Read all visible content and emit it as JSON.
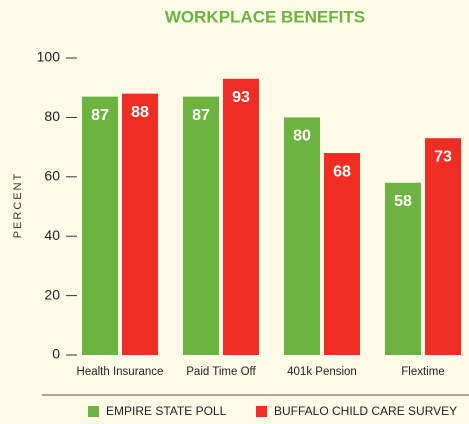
{
  "chart_data": {
    "type": "bar",
    "title": "WORKPLACE BENEFITS",
    "y_label": "PERCENT",
    "categories": [
      "Health Insurance",
      "Paid Time Off",
      "401k Pension",
      "Flextime"
    ],
    "series": [
      {
        "name": "EMPIRE STATE POLL",
        "color": "#6db33f",
        "values": [
          87,
          87,
          80,
          58
        ]
      },
      {
        "name": "BUFFALO CHILD CARE SURVEY",
        "color": "#ee2e24",
        "values": [
          88,
          93,
          68,
          73
        ]
      }
    ],
    "ylim": [
      0,
      100
    ],
    "yticks": [
      0,
      20,
      40,
      60,
      80,
      100
    ],
    "legend": "bottom"
  }
}
